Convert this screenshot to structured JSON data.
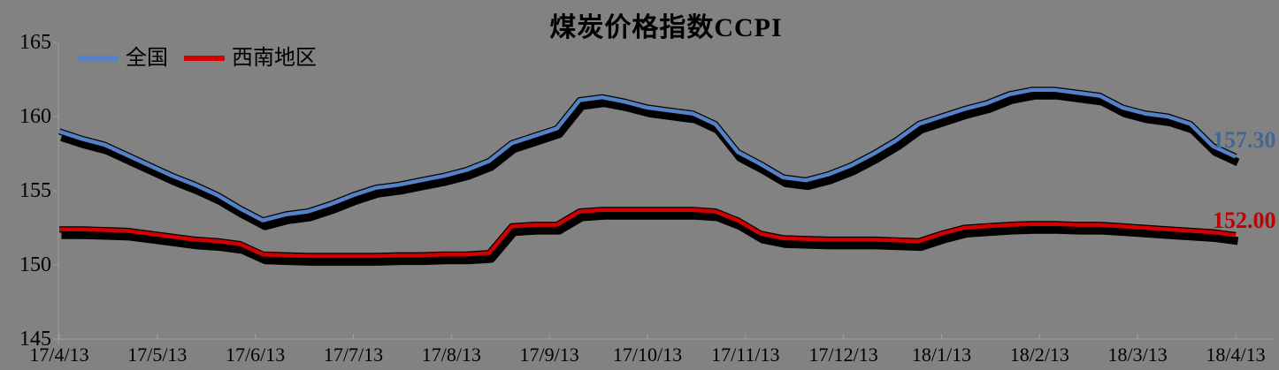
{
  "title": "煤炭价格指数CCPI",
  "legend": {
    "items": [
      {
        "label": "全国",
        "color": "#5581C6"
      },
      {
        "label": "西南地区",
        "color": "#D10000"
      }
    ]
  },
  "colors": {
    "background": "#828282",
    "axis": "#9F9F9F",
    "shadow": "#000000",
    "national_line": "#5581C6",
    "southwest_line": "#D10000",
    "national_label": "#44678F",
    "southwest_label": "#C00000"
  },
  "chart_data": {
    "type": "line",
    "title": "煤炭价格指数CCPI",
    "ylim": [
      145,
      165
    ],
    "y_ticks": [
      165,
      160,
      155,
      150,
      145
    ],
    "x_tick_labels": [
      "17/4/13",
      "17/5/13",
      "17/6/13",
      "17/7/13",
      "17/8/13",
      "17/9/13",
      "17/10/13",
      "17/11/13",
      "17/12/13",
      "18/1/13",
      "18/2/13",
      "18/3/13",
      "18/4/13"
    ],
    "x_frequency": "weekly points, one axis label per ~4 weeks",
    "legend_position": "top-left",
    "grid": false,
    "series": [
      {
        "name": "全国",
        "color": "#5581C6",
        "label_color": "#44678F",
        "end_label": "157.30",
        "values": [
          159.0,
          158.5,
          158.1,
          157.4,
          156.7,
          156.0,
          155.4,
          154.7,
          153.8,
          153.0,
          153.4,
          153.6,
          154.1,
          154.7,
          155.2,
          155.4,
          155.7,
          156.0,
          156.4,
          157.0,
          158.2,
          158.7,
          159.2,
          161.1,
          161.3,
          161.0,
          160.6,
          160.4,
          160.2,
          159.5,
          157.6,
          156.8,
          155.9,
          155.7,
          156.1,
          156.7,
          157.5,
          158.4,
          159.5,
          160.0,
          160.5,
          160.9,
          161.5,
          161.8,
          161.8,
          161.6,
          161.4,
          160.6,
          160.2,
          160.0,
          159.5,
          158.0,
          157.3
        ]
      },
      {
        "name": "西南地区",
        "color": "#D10000",
        "label_color": "#C00000",
        "end_label": "152.00",
        "values": [
          152.4,
          152.4,
          152.35,
          152.3,
          152.1,
          151.9,
          151.7,
          151.6,
          151.4,
          150.7,
          150.65,
          150.6,
          150.6,
          150.6,
          150.6,
          150.65,
          150.65,
          150.7,
          150.7,
          150.8,
          152.6,
          152.7,
          152.7,
          153.6,
          153.7,
          153.7,
          153.7,
          153.7,
          153.7,
          153.6,
          153.0,
          152.1,
          151.8,
          151.75,
          151.7,
          151.7,
          151.7,
          151.65,
          151.6,
          152.1,
          152.5,
          152.6,
          152.7,
          152.75,
          152.75,
          152.7,
          152.7,
          152.6,
          152.5,
          152.4,
          152.3,
          152.2,
          152.0
        ]
      }
    ]
  }
}
